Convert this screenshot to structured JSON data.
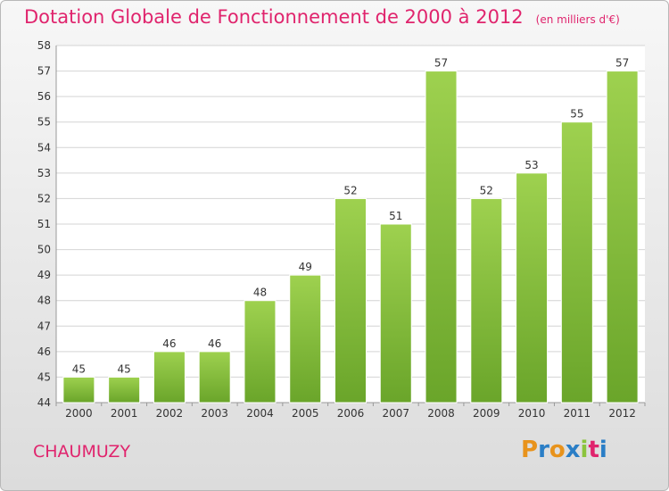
{
  "title": "Dotation Globale de Fonctionnement de 2000 à 2012",
  "subtitle": "(en milliers d'€)",
  "commune": "CHAUMUZY",
  "logo": {
    "text": "Proxiti",
    "colors": [
      "#e8931c",
      "#2a7ec6",
      "#e8931c",
      "#2a7ec6",
      "#8bc43d",
      "#e0246d",
      "#2a7ec6"
    ]
  },
  "chart_data": {
    "type": "bar",
    "categories": [
      "2000",
      "2001",
      "2002",
      "2003",
      "2004",
      "2005",
      "2006",
      "2007",
      "2008",
      "2009",
      "2010",
      "2011",
      "2012"
    ],
    "values": [
      45,
      45,
      46,
      46,
      48,
      49,
      52,
      51,
      57,
      52,
      53,
      55,
      57
    ],
    "yticks": [
      44,
      45,
      46,
      47,
      48,
      49,
      50,
      51,
      52,
      53,
      54,
      55,
      56,
      57,
      58
    ],
    "ylim": [
      44,
      58
    ],
    "grid": true,
    "bar_color_top": "#9ed14f",
    "bar_color_bottom": "#6aa52a"
  }
}
